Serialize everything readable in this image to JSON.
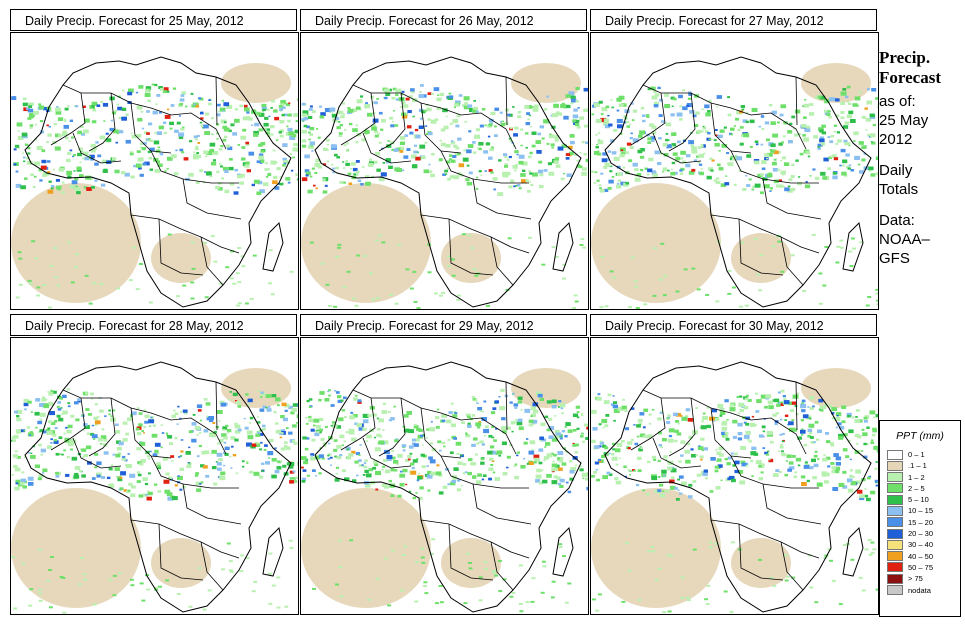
{
  "panels": [
    {
      "title": "Daily Precip. Forecast for  25 May, 2012",
      "seed": 3
    },
    {
      "title": "Daily Precip. Forecast for  26 May, 2012",
      "seed": 7
    },
    {
      "title": "Daily Precip. Forecast for  27 May, 2012",
      "seed": 11
    },
    {
      "title": "Daily Precip. Forecast for  28 May, 2012",
      "seed": 17
    },
    {
      "title": "Daily Precip. Forecast for  29 May, 2012",
      "seed": 23
    },
    {
      "title": "Daily Precip. Forecast for  30 May, 2012",
      "seed": 31
    }
  ],
  "side": {
    "heading1": "Precip.",
    "heading2": "Forecast",
    "asof_label": "as of:",
    "date_line1": "25 May",
    "date_line2": "2012",
    "totals_line1": "Daily",
    "totals_line2": "Totals",
    "data_line1": "Data:",
    "data_line2": "NOAA–",
    "data_line3": "GFS"
  },
  "legend": {
    "title": "PPT (mm)",
    "items": [
      {
        "label": "0 – 1",
        "color": "#ffffff"
      },
      {
        "label": ".1 – 1",
        "color": "#e6d6b8"
      },
      {
        "label": "1 – 2",
        "color": "#b8f0b0"
      },
      {
        "label": "2 – 5",
        "color": "#6ee06a"
      },
      {
        "label": "5 – 10",
        "color": "#2ec04a"
      },
      {
        "label": "10 – 15",
        "color": "#8cc0f0"
      },
      {
        "label": "15 – 20",
        "color": "#4a90e8"
      },
      {
        "label": "20 – 30",
        "color": "#1f5fd8"
      },
      {
        "label": "30 – 40",
        "color": "#f6e27a"
      },
      {
        "label": "40 – 50",
        "color": "#f0a020"
      },
      {
        "label": "50 – 75",
        "color": "#e02010"
      },
      {
        "label": "> 75",
        "color": "#8c1010"
      },
      {
        "label": "nodata",
        "color": "#c8c8c8"
      }
    ]
  }
}
